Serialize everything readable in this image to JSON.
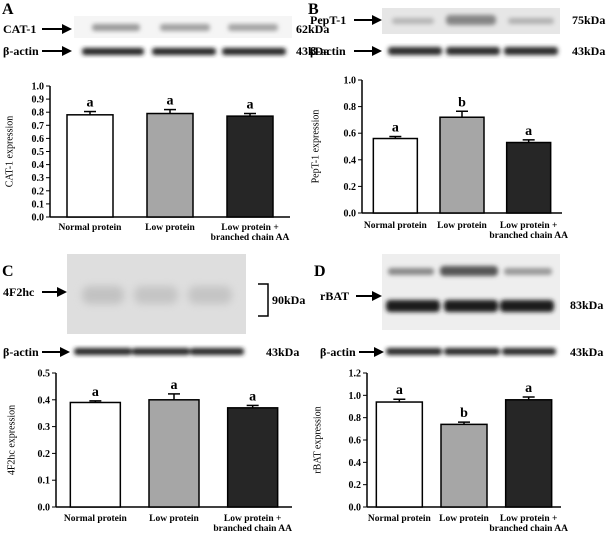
{
  "panels": [
    {
      "letter": "A",
      "blot": {
        "protein_label": "CAT-1",
        "protein_kda": "62kDa",
        "actin_label": "β-actin",
        "actin_kda": "43kDa"
      },
      "chart_data": {
        "type": "bar",
        "categories": [
          "Normal protein",
          "Low protein",
          "Low protein + branched chain AA"
        ],
        "tick_lines": [
          [
            "Normal protein"
          ],
          [
            "Low protein"
          ],
          [
            "Low protein +",
            "branched chain AA"
          ]
        ],
        "values": [
          0.78,
          0.79,
          0.77
        ],
        "errors": [
          0.025,
          0.03,
          0.02
        ],
        "letters": [
          "a",
          "a",
          "a"
        ],
        "colors": [
          "#ffffff",
          "#a6a6a6",
          "#262626"
        ],
        "ylabel": "CAT-1 expression",
        "ylim": [
          0,
          1.0
        ],
        "yticks": [
          "0.0",
          "0.1",
          "0.2",
          "0.3",
          "0.4",
          "0.5",
          "0.6",
          "0.7",
          "0.8",
          "0.9",
          "1.0"
        ]
      }
    },
    {
      "letter": "B",
      "blot": {
        "protein_label": "PepT-1",
        "protein_kda": "75kDa",
        "actin_label": "β-actin",
        "actin_kda": "43kDa"
      },
      "chart_data": {
        "type": "bar",
        "categories": [
          "Normal protein",
          "Low protein",
          "Low protein + branched chain AA"
        ],
        "tick_lines": [
          [
            "Normal protein"
          ],
          [
            "Low protein"
          ],
          [
            "Low protein +",
            "branched chain AA"
          ]
        ],
        "values": [
          0.56,
          0.72,
          0.53
        ],
        "errors": [
          0.015,
          0.045,
          0.02
        ],
        "letters": [
          "a",
          "b",
          "a"
        ],
        "colors": [
          "#ffffff",
          "#a6a6a6",
          "#262626"
        ],
        "ylabel": "PepT-1 expression",
        "ylim": [
          0,
          1.0
        ],
        "yticks": [
          "0.0",
          "0.2",
          "0.4",
          "0.6",
          "0.8",
          "1.0"
        ]
      }
    },
    {
      "letter": "C",
      "blot": {
        "protein_label": "4F2hc",
        "protein_kda": "90kDa",
        "actin_label": "β-actin",
        "actin_kda": "43kDa"
      },
      "chart_data": {
        "type": "bar",
        "categories": [
          "Normal protein",
          "Low protein",
          "Low protein + branched chain AA"
        ],
        "tick_lines": [
          [
            "Normal protein"
          ],
          [
            "Low protein"
          ],
          [
            "Low protein +",
            "branched chain AA"
          ]
        ],
        "values": [
          0.39,
          0.4,
          0.37
        ],
        "errors": [
          0.006,
          0.022,
          0.009
        ],
        "letters": [
          "a",
          "a",
          "a"
        ],
        "colors": [
          "#ffffff",
          "#a6a6a6",
          "#262626"
        ],
        "ylabel": "4F2hc expression",
        "ylim": [
          0,
          0.5
        ],
        "yticks": [
          "0.0",
          "0.1",
          "0.2",
          "0.3",
          "0.4",
          "0.5"
        ]
      }
    },
    {
      "letter": "D",
      "blot": {
        "protein_label": "rBAT",
        "protein_kda": "83kDa",
        "actin_label": "β-actin",
        "actin_kda": "43kDa"
      },
      "chart_data": {
        "type": "bar",
        "categories": [
          "Normal protein",
          "Low protein",
          "Low protein + branched chain AA"
        ],
        "tick_lines": [
          [
            "Normal protein"
          ],
          [
            "Low protein"
          ],
          [
            "Low protein +",
            "branched chain AA"
          ]
        ],
        "values": [
          0.94,
          0.74,
          0.96
        ],
        "errors": [
          0.025,
          0.02,
          0.025
        ],
        "letters": [
          "a",
          "b",
          "a"
        ],
        "colors": [
          "#ffffff",
          "#a6a6a6",
          "#262626"
        ],
        "ylabel": "rBAT expression",
        "ylim": [
          0,
          1.2
        ],
        "yticks": [
          "0.0",
          "0.2",
          "0.4",
          "0.6",
          "0.8",
          "1.0",
          "1.2"
        ]
      }
    }
  ]
}
